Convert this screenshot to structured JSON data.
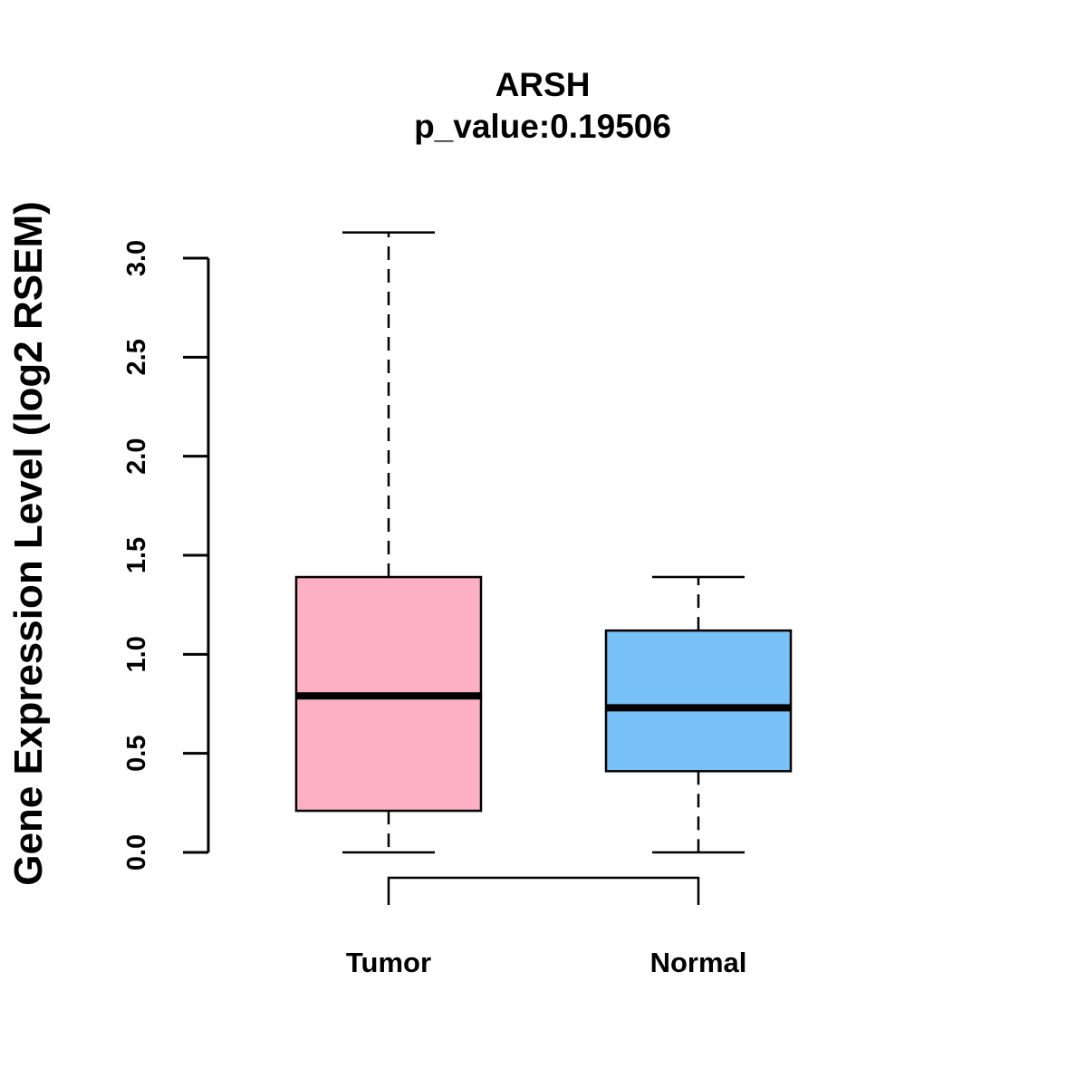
{
  "chart_data": {
    "type": "boxplot",
    "title": "ARSH",
    "subtitle": "p_value:0.19506",
    "xlabel": "",
    "ylabel": "Gene Expression Level (log2 RSEM)",
    "ylim": [
      0,
      3.0
    ],
    "yticks": [
      "0.0",
      "0.5",
      "1.0",
      "1.5",
      "2.0",
      "2.5",
      "3.0"
    ],
    "ytick_values": [
      0,
      0.5,
      1.0,
      1.5,
      2.0,
      2.5,
      3.0
    ],
    "grid": false,
    "categories": [
      "Tumor",
      "Normal"
    ],
    "boxes": [
      {
        "category": "Tumor",
        "whisker_low": 0.0,
        "q1": 0.21,
        "median": 0.79,
        "q3": 1.39,
        "whisker_high": 3.13,
        "color": "#FDB0C3"
      },
      {
        "category": "Normal",
        "whisker_low": 0.0,
        "q1": 0.41,
        "median": 0.73,
        "q3": 1.12,
        "whisker_high": 1.39,
        "color": "#78C0F8"
      }
    ],
    "comparison_bracket": [
      "Tumor",
      "Normal"
    ]
  }
}
